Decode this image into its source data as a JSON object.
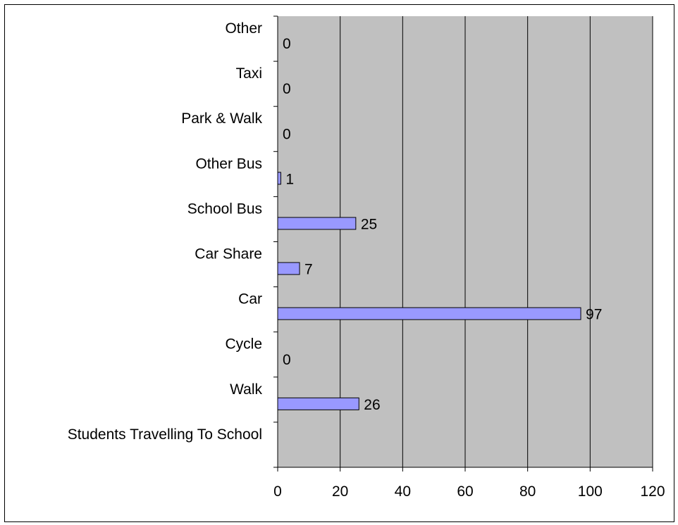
{
  "chart_data": {
    "type": "bar",
    "orientation": "horizontal",
    "title": "",
    "xlabel": "",
    "ylabel": "",
    "categories": [
      "Students Travelling To School",
      "Walk",
      "Cycle",
      "Car",
      "Car Share",
      "School Bus",
      "Other Bus",
      "Park & Walk",
      "Taxi",
      "Other"
    ],
    "values": [
      null,
      26,
      0,
      97,
      7,
      25,
      1,
      0,
      0,
      0
    ],
    "data_labels": [
      "",
      "26",
      "0",
      "97",
      "7",
      "25",
      "1",
      "0",
      "0",
      "0"
    ],
    "xlim": [
      0,
      120
    ],
    "xticks": [
      "0",
      "20",
      "40",
      "60",
      "80",
      "100",
      "120"
    ],
    "grid": "vertical",
    "legend": "none",
    "colors": {
      "plot_background": "#c0c0c0",
      "bar_fill": "#9999ff",
      "bar_edge": "#000000",
      "gridline": "#000000"
    }
  }
}
